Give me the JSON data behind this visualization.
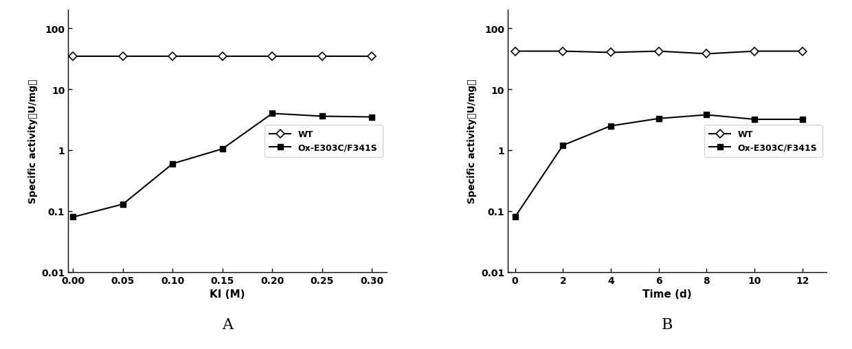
{
  "chart_A": {
    "xlabel": "KI (M)",
    "ylabel": "Specific activity（U/mg）",
    "label": "A",
    "wt_x": [
      0.0,
      0.05,
      0.1,
      0.15,
      0.2,
      0.25,
      0.3
    ],
    "wt_y": [
      35,
      35,
      35,
      35,
      35,
      35,
      35
    ],
    "mut_x": [
      0.0,
      0.05,
      0.1,
      0.15,
      0.2,
      0.25,
      0.3
    ],
    "mut_y": [
      0.08,
      0.13,
      0.6,
      1.05,
      4.0,
      3.6,
      3.5
    ],
    "ylim": [
      0.01,
      200
    ],
    "xlim": [
      -0.005,
      0.315
    ],
    "xticks": [
      0.0,
      0.05,
      0.1,
      0.15,
      0.2,
      0.25,
      0.3
    ],
    "legend_wt": "WT",
    "legend_mut": "Ox-E303C/F341S"
  },
  "chart_B": {
    "xlabel": "Time (d)",
    "ylabel": "Specific activity（U/mg）",
    "label": "B",
    "wt_x": [
      0,
      2,
      4,
      6,
      8,
      10,
      12
    ],
    "wt_y": [
      42,
      42,
      40,
      42,
      38,
      42,
      42
    ],
    "mut_x": [
      0,
      2,
      4,
      6,
      8,
      10,
      12
    ],
    "mut_y": [
      0.08,
      1.2,
      2.5,
      3.3,
      3.8,
      3.2,
      3.2
    ],
    "ylim": [
      0.01,
      200
    ],
    "xlim": [
      -0.3,
      13
    ],
    "xticks": [
      0,
      2,
      4,
      6,
      8,
      10,
      12
    ],
    "legend_wt": "WT",
    "legend_mut": "Ox-E303C/F341S"
  },
  "line_color": "#000000",
  "background_color": "#ffffff",
  "wt_marker": "D",
  "mut_marker": "s",
  "marker_size": 6,
  "linewidth": 1.5,
  "ylabel_fontsize": 10,
  "xlabel_fontsize": 11,
  "tick_fontsize": 10,
  "legend_fontsize": 9,
  "label_fontsize": 16
}
